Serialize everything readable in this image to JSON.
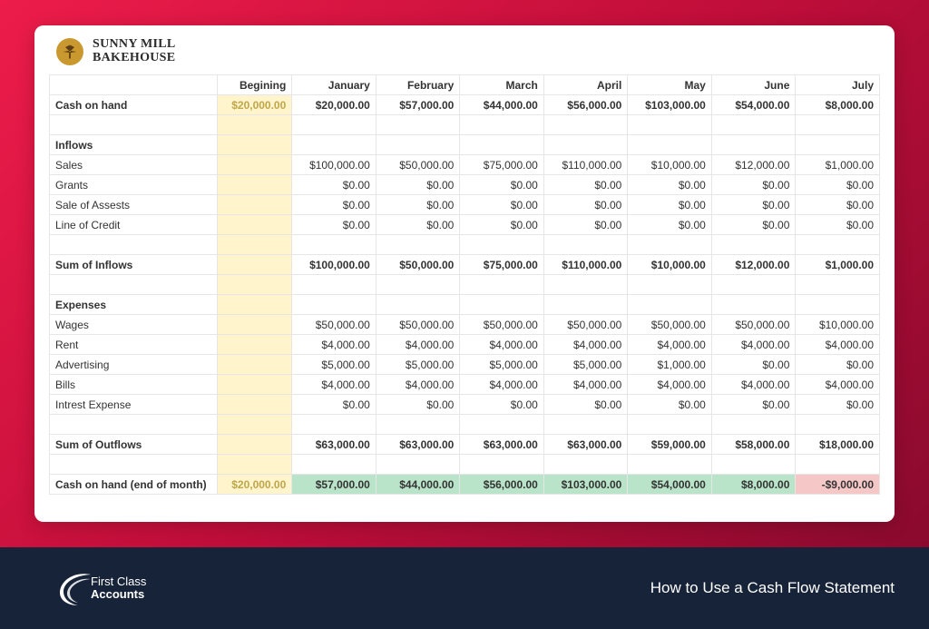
{
  "brand": {
    "line1": "SUNNY MILL",
    "line2": "BAKEHOUSE",
    "logo_bg": "#c9992f"
  },
  "columns": {
    "label": "",
    "begining": "Begining",
    "months": [
      "January",
      "February",
      "March",
      "April",
      "May",
      "June",
      "July"
    ]
  },
  "table": {
    "cash_on_hand": {
      "label": "Cash on hand",
      "begining": "$20,000.00",
      "values": [
        "$20,000.00",
        "$57,000.00",
        "$44,000.00",
        "$56,000.00",
        "$103,000.00",
        "$54,000.00",
        "$8,000.00"
      ]
    },
    "inflows_header": "Inflows",
    "inflows": [
      {
        "label": "Sales",
        "values": [
          "$100,000.00",
          "$50,000.00",
          "$75,000.00",
          "$110,000.00",
          "$10,000.00",
          "$12,000.00",
          "$1,000.00"
        ]
      },
      {
        "label": "Grants",
        "values": [
          "$0.00",
          "$0.00",
          "$0.00",
          "$0.00",
          "$0.00",
          "$0.00",
          "$0.00"
        ]
      },
      {
        "label": "Sale of Assests",
        "values": [
          "$0.00",
          "$0.00",
          "$0.00",
          "$0.00",
          "$0.00",
          "$0.00",
          "$0.00"
        ]
      },
      {
        "label": "Line of Credit",
        "values": [
          "$0.00",
          "$0.00",
          "$0.00",
          "$0.00",
          "$0.00",
          "$0.00",
          "$0.00"
        ]
      }
    ],
    "sum_inflows": {
      "label": "Sum of Inflows",
      "values": [
        "$100,000.00",
        "$50,000.00",
        "$75,000.00",
        "$110,000.00",
        "$10,000.00",
        "$12,000.00",
        "$1,000.00"
      ]
    },
    "expenses_header": "Expenses",
    "expenses": [
      {
        "label": "Wages",
        "values": [
          "$50,000.00",
          "$50,000.00",
          "$50,000.00",
          "$50,000.00",
          "$50,000.00",
          "$50,000.00",
          "$10,000.00"
        ]
      },
      {
        "label": "Rent",
        "values": [
          "$4,000.00",
          "$4,000.00",
          "$4,000.00",
          "$4,000.00",
          "$4,000.00",
          "$4,000.00",
          "$4,000.00"
        ]
      },
      {
        "label": "Advertising",
        "values": [
          "$5,000.00",
          "$5,000.00",
          "$5,000.00",
          "$5,000.00",
          "$1,000.00",
          "$0.00",
          "$0.00"
        ]
      },
      {
        "label": "Bills",
        "values": [
          "$4,000.00",
          "$4,000.00",
          "$4,000.00",
          "$4,000.00",
          "$4,000.00",
          "$4,000.00",
          "$4,000.00"
        ]
      },
      {
        "label": "Intrest Expense",
        "values": [
          "$0.00",
          "$0.00",
          "$0.00",
          "$0.00",
          "$0.00",
          "$0.00",
          "$0.00"
        ]
      }
    ],
    "sum_outflows": {
      "label": "Sum of Outflows",
      "values": [
        "$63,000.00",
        "$63,000.00",
        "$63,000.00",
        "$63,000.00",
        "$59,000.00",
        "$58,000.00",
        "$18,000.00"
      ]
    },
    "cash_eom": {
      "label": "Cash on hand (end of month)",
      "begining": "$20,000.00",
      "values": [
        "$57,000.00",
        "$44,000.00",
        "$56,000.00",
        "$103,000.00",
        "$54,000.00",
        "$8,000.00",
        "-$9,000.00"
      ],
      "negative_flags": [
        false,
        false,
        false,
        false,
        false,
        false,
        true
      ]
    }
  },
  "colors": {
    "grid": "#e6e6e6",
    "begining_fill": "#fff4cc",
    "begining_text": "#bfa648",
    "eom_positive_fill": "#b9e4c9",
    "eom_negative_fill": "#f6c7c7",
    "gradient_from": "#ed1c4a",
    "gradient_to": "#8a0a2e",
    "footer_bg": "#162338"
  },
  "footer": {
    "logo_line1": "First Class",
    "logo_line2": "Accounts",
    "title": "How to Use a Cash Flow Statement"
  }
}
